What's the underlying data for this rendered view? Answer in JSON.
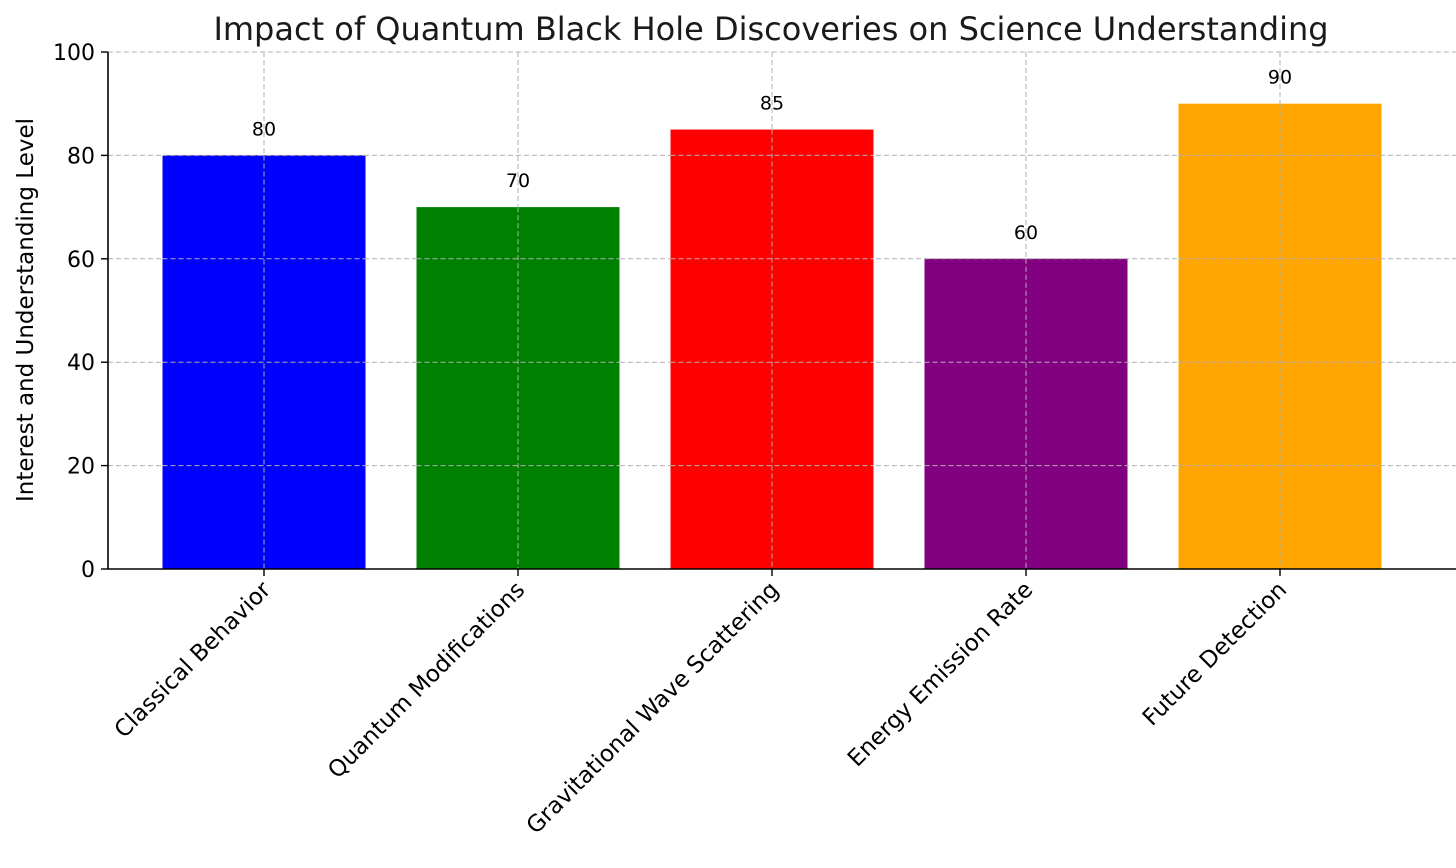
{
  "chart_data": {
    "type": "bar",
    "title": "Impact of Quantum Black Hole Discoveries on Science Understanding",
    "xlabel": "",
    "ylabel": "Interest and Understanding Level",
    "categories": [
      "Classical Behavior",
      "Quantum Modifications",
      "Gravitational Wave Scattering",
      "Energy Emission Rate",
      "Future Detection"
    ],
    "values": [
      80,
      70,
      85,
      60,
      90
    ],
    "colors": [
      "#0000ff",
      "#008000",
      "#ff0000",
      "#800080",
      "#ffa500"
    ],
    "ylim": [
      0,
      100
    ],
    "yticks": [
      0,
      20,
      40,
      60,
      80,
      100
    ],
    "grid": true,
    "data_labels": true,
    "legend": "none"
  }
}
